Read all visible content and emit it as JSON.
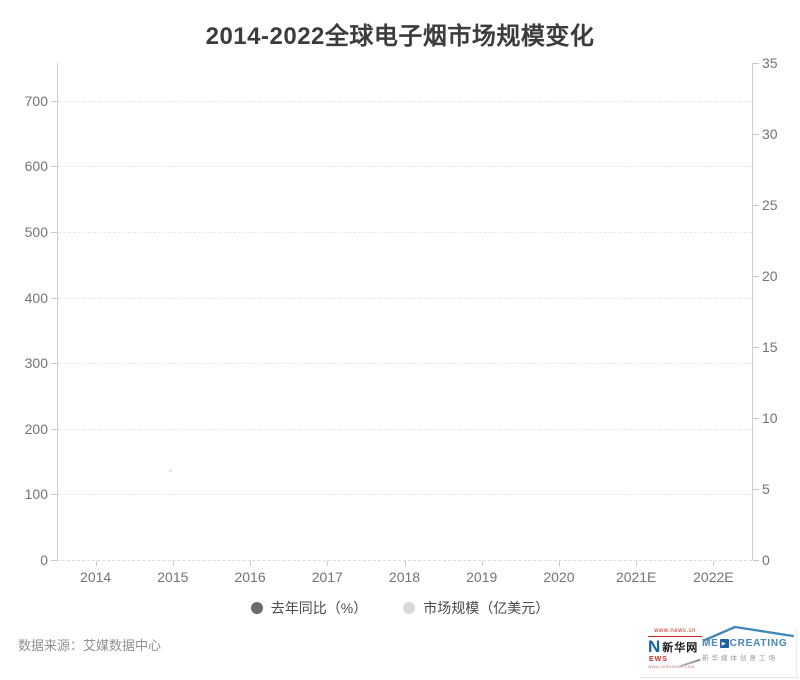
{
  "title": "2014-2022全球电子烟市场规模变化",
  "legend": {
    "items": [
      {
        "label": "去年同比（%）",
        "color": "#6b6b6b"
      },
      {
        "label": "市场规模（亿美元）",
        "color": "#d9d9d9"
      }
    ]
  },
  "chart_data": {
    "type": "bar",
    "title": "2014-2022全球电子烟市场规模变化",
    "categories": [
      "2014",
      "2015",
      "2016",
      "2017",
      "2018",
      "2019",
      "2020",
      "2021E",
      "2022E"
    ],
    "series": [
      {
        "name": "去年同比（%）",
        "yaxis": "right",
        "marker_color": "#6b6b6b",
        "values": []
      },
      {
        "name": "市场规模（亿美元）",
        "yaxis": "left",
        "marker_color": "#d9d9d9",
        "values": []
      }
    ],
    "left_axis": {
      "ticks": [
        "0",
        "100",
        "200",
        "300",
        "400",
        "500",
        "600",
        "700"
      ],
      "ylim": [
        0,
        758
      ]
    },
    "right_axis": {
      "ticks": [
        "0",
        "5",
        "10",
        "15",
        "20",
        "25",
        "30",
        "35"
      ],
      "ylim": [
        0,
        35
      ]
    },
    "grid": {
      "horizontal_gridlines": true,
      "style": "dashed"
    },
    "legend_position": "bottom-center",
    "note": "plot area is rendered empty — no bars or lines are visible for any category"
  },
  "footer": {
    "source": "数据来源：艾媒数据中心",
    "xinhua_logo": {
      "url_top": "www.news.cn",
      "n_letter": "N",
      "name": "新华网",
      "ews": "EWS",
      "url_bottom": "www.xinhuanet.com"
    },
    "medcreating_logo": {
      "brand_prefix": "ME",
      "play_icon": "▶",
      "brand_suffix": "CREATING",
      "subtitle": "新华媒体创意工场"
    }
  },
  "colors": {
    "title": "#3c3c3c",
    "axis_label": "#747474",
    "axis_line": "#cfcfcf",
    "axis_tick": "#c9c9c9",
    "x_axis_dash": "#dcdcdc",
    "gridline": "#e9e9e9",
    "xinhua_blue": "#1565a8",
    "xinhua_red": "#c9281e",
    "med_blue": "#4587b9",
    "med_dark_blue": "#1f5fa8"
  }
}
